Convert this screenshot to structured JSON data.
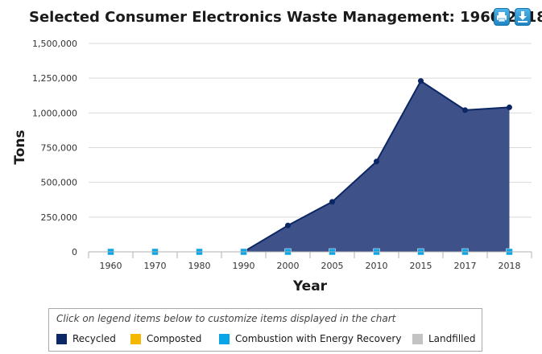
{
  "header": {
    "title": "Selected Consumer Electronics Waste Management: 1960-2018",
    "print_icon": "print-icon",
    "download_icon": "download-icon"
  },
  "legend": {
    "hint": "Click on legend items below to customize items displayed in the chart",
    "items": [
      {
        "label": "Recycled",
        "color": "#0c2765"
      },
      {
        "label": "Composted",
        "color": "#f5b800"
      },
      {
        "label": "Combustion with Energy Recovery",
        "color": "#0aa5e6"
      },
      {
        "label": "Landfilled",
        "color": "#c3c3c3"
      }
    ]
  },
  "chart_data": {
    "type": "area",
    "title": "Selected Consumer Electronics Waste Management: 1960-2018",
    "xlabel": "Year",
    "ylabel": "Tons",
    "categories": [
      "1960",
      "1970",
      "1980",
      "1990",
      "2000",
      "2005",
      "2010",
      "2015",
      "2017",
      "2018"
    ],
    "y_ticks": [
      "0",
      "250,000",
      "500,000",
      "750,000",
      "1,000,000",
      "1,250,000",
      "1,500,000"
    ],
    "ylim": [
      0,
      1500000
    ],
    "grid": true,
    "legend_position": "bottom",
    "series": [
      {
        "name": "Recycled",
        "color": "#0c2765",
        "fill": "#3e5188",
        "values": [
          null,
          null,
          null,
          0,
          190000,
          360000,
          650000,
          1230000,
          1020000,
          1040000
        ]
      },
      {
        "name": "Combustion with Energy Recovery",
        "color": "#0aa5e6",
        "values": [
          0,
          0,
          0,
          0,
          0,
          0,
          0,
          0,
          0,
          0
        ]
      }
    ]
  }
}
